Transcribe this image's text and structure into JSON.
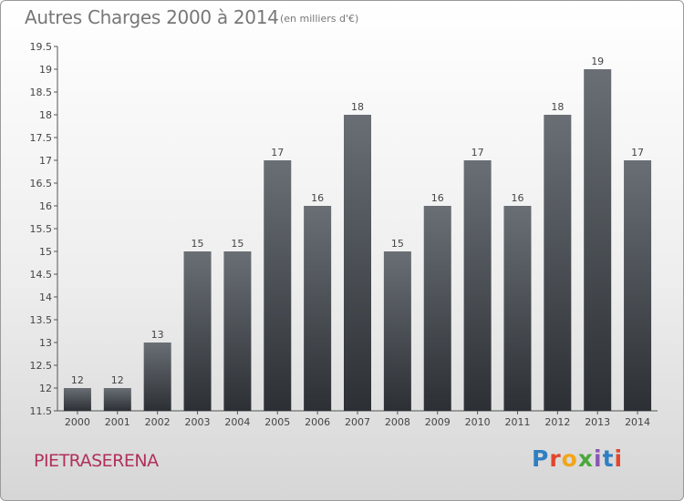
{
  "title": "Autres Charges 2000 à 2014",
  "unit_note": "(en milliers d'€)",
  "commune": "PIETRASERENA",
  "logo": [
    "P",
    "r",
    "o",
    "x",
    "i",
    "t",
    "i"
  ],
  "colors": {
    "bar_top": "#6a6f75",
    "bar_bottom": "#2c3035",
    "commune": "#b0305c"
  },
  "chart_data": {
    "type": "bar",
    "title": "Autres Charges 2000 à 2014",
    "categories": [
      "2000",
      "2001",
      "2002",
      "2003",
      "2004",
      "2005",
      "2006",
      "2007",
      "2008",
      "2009",
      "2010",
      "2011",
      "2012",
      "2013",
      "2014"
    ],
    "values": [
      12,
      12,
      13,
      15,
      15,
      17,
      16,
      18,
      15,
      16,
      17,
      16,
      18,
      19,
      17
    ],
    "ylim": [
      11.5,
      19.5
    ],
    "yticks": [
      "11.5",
      "12",
      "12.5",
      "13",
      "13.5",
      "14",
      "14.5",
      "15",
      "15.5",
      "16",
      "16.5",
      "17",
      "17.5",
      "18",
      "18.5",
      "19",
      "19.5"
    ],
    "grid": false
  }
}
